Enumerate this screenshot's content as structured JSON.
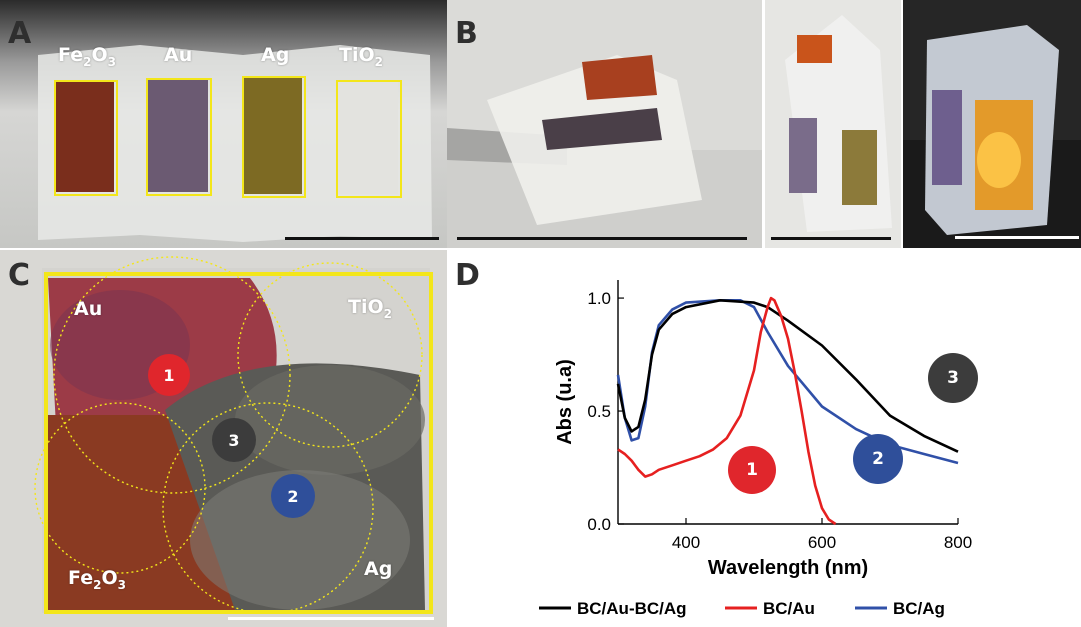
{
  "panels": {
    "a": {
      "label": "A",
      "materials": [
        {
          "base": "Fe",
          "sub": "2",
          "mid": "O",
          "sub2": "3"
        },
        {
          "base": "Au"
        },
        {
          "base": "Ag"
        },
        {
          "base": "TiO",
          "sub": "2"
        }
      ]
    },
    "b": {
      "label": "B"
    },
    "c": {
      "label": "C",
      "materials": {
        "au": {
          "base": "Au"
        },
        "tio2": {
          "base": "TiO",
          "sub": "2"
        },
        "fe2o3": {
          "base": "Fe",
          "sub": "2",
          "mid": "O",
          "sub2": "3"
        },
        "ag": {
          "base": "Ag"
        }
      },
      "badges": [
        "1",
        "2",
        "3"
      ]
    },
    "d": {
      "label": "D"
    }
  },
  "colors": {
    "yellow_frame": "#f3e61a",
    "badge_1": "#e0262c",
    "badge_2": "#2f4f9a",
    "badge_3": "#3c3c3c",
    "series_black": "#000000",
    "series_red": "#e62020",
    "series_blue": "#3050a8"
  },
  "chart_data": {
    "type": "line",
    "xlabel": "Wavelength (nm)",
    "ylabel": "Abs (u.a)",
    "xlim": [
      300,
      800
    ],
    "ylim": [
      0,
      1.08
    ],
    "x_ticks": [
      400,
      600,
      800
    ],
    "y_ticks": [
      0.0,
      0.5,
      1.0
    ],
    "x_tick_labels": [
      "400",
      "600",
      "800"
    ],
    "y_tick_labels": [
      "0.0",
      "0.5",
      "1.0"
    ],
    "legend_position": "bottom",
    "series": [
      {
        "name": "BC/Au-BC/Ag",
        "color": "#000000",
        "x": [
          300,
          310,
          320,
          330,
          340,
          350,
          360,
          380,
          400,
          450,
          500,
          520,
          550,
          600,
          650,
          700,
          750,
          800
        ],
        "y": [
          0.62,
          0.47,
          0.41,
          0.43,
          0.55,
          0.75,
          0.86,
          0.93,
          0.96,
          0.99,
          0.98,
          0.96,
          0.9,
          0.79,
          0.64,
          0.48,
          0.39,
          0.32
        ]
      },
      {
        "name": "BC/Au",
        "color": "#e62020",
        "x": [
          300,
          310,
          320,
          330,
          340,
          350,
          360,
          380,
          400,
          420,
          440,
          460,
          480,
          500,
          510,
          520,
          525,
          530,
          540,
          550,
          560,
          570,
          580,
          590,
          600,
          610,
          620
        ],
        "y": [
          0.33,
          0.31,
          0.28,
          0.24,
          0.21,
          0.22,
          0.24,
          0.26,
          0.28,
          0.3,
          0.33,
          0.38,
          0.48,
          0.68,
          0.85,
          0.96,
          1.0,
          0.99,
          0.92,
          0.82,
          0.67,
          0.5,
          0.32,
          0.17,
          0.07,
          0.02,
          0.0
        ]
      },
      {
        "name": "BC/Ag",
        "color": "#3050a8",
        "x": [
          300,
          310,
          320,
          330,
          340,
          350,
          360,
          380,
          400,
          450,
          480,
          500,
          520,
          550,
          600,
          650,
          700,
          750,
          800
        ],
        "y": [
          0.66,
          0.47,
          0.37,
          0.38,
          0.52,
          0.76,
          0.88,
          0.95,
          0.98,
          0.99,
          0.99,
          0.96,
          0.85,
          0.7,
          0.52,
          0.42,
          0.35,
          0.31,
          0.27
        ]
      }
    ],
    "annotations": [
      "1",
      "2",
      "3"
    ]
  }
}
